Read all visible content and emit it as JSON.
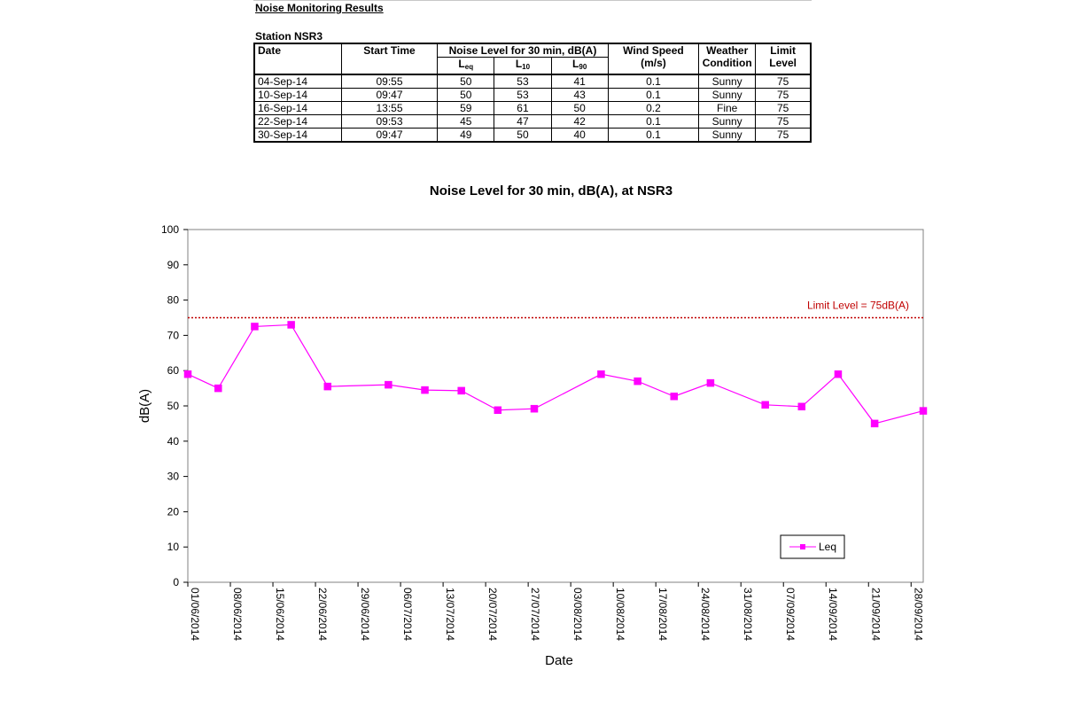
{
  "document": {
    "heading": "Noise Monitoring Results",
    "station": "Station NSR3"
  },
  "table": {
    "headers": {
      "date": "Date",
      "start_time": "Start Time",
      "noise_level": "Noise Level for 30 min, dB(A)",
      "leq": {
        "main": "L",
        "sub": "eq"
      },
      "l10": {
        "main": "L",
        "sub": "10"
      },
      "l90": {
        "main": "L",
        "sub": "90"
      },
      "wind_speed": "Wind Speed",
      "wind_unit": "(m/s)",
      "weather": "Weather",
      "weather2": "Condition",
      "limit": "Limit",
      "limit2": "Level"
    },
    "rows": [
      {
        "date": "04-Sep-14",
        "time": "09:55",
        "leq": "50",
        "l10": "53",
        "l90": "41",
        "wind": "0.1",
        "weather": "Sunny",
        "limit": "75"
      },
      {
        "date": "10-Sep-14",
        "time": "09:47",
        "leq": "50",
        "l10": "53",
        "l90": "43",
        "wind": "0.1",
        "weather": "Sunny",
        "limit": "75"
      },
      {
        "date": "16-Sep-14",
        "time": "13:55",
        "leq": "59",
        "l10": "61",
        "l90": "50",
        "wind": "0.2",
        "weather": "Fine",
        "limit": "75"
      },
      {
        "date": "22-Sep-14",
        "time": "09:53",
        "leq": "45",
        "l10": "47",
        "l90": "42",
        "wind": "0.1",
        "weather": "Sunny",
        "limit": "75"
      },
      {
        "date": "30-Sep-14",
        "time": "09:47",
        "leq": "49",
        "l10": "50",
        "l90": "40",
        "wind": "0.1",
        "weather": "Sunny",
        "limit": "75"
      }
    ]
  },
  "chart_data": {
    "type": "line",
    "title": "Noise Level for 30 min, dB(A), at NSR3",
    "xlabel": "Date",
    "ylabel": "dB(A)",
    "ylim": [
      0,
      100
    ],
    "yticks": [
      0,
      10,
      20,
      30,
      40,
      50,
      60,
      70,
      80,
      90,
      100
    ],
    "xlim": [
      "2014-06-01",
      "2014-09-30"
    ],
    "xticks": [
      "01/06/2014",
      "08/06/2014",
      "15/06/2014",
      "22/06/2014",
      "29/06/2014",
      "06/07/2014",
      "13/07/2014",
      "20/07/2014",
      "27/07/2014",
      "03/08/2014",
      "10/08/2014",
      "17/08/2014",
      "24/08/2014",
      "31/08/2014",
      "07/09/2014",
      "14/09/2014",
      "21/09/2014",
      "28/09/2014"
    ],
    "grid": false,
    "legend": "bottom-right",
    "limit_line": {
      "value": 75,
      "label": "Limit Level  = 75dB(A)",
      "color": "#c00000"
    },
    "series": [
      {
        "name": "Leq",
        "color": "#ff00ff",
        "x": [
          "2014-06-01",
          "2014-06-06",
          "2014-06-12",
          "2014-06-18",
          "2014-06-24",
          "2014-07-04",
          "2014-07-10",
          "2014-07-16",
          "2014-07-22",
          "2014-07-28",
          "2014-08-08",
          "2014-08-14",
          "2014-08-20",
          "2014-08-26",
          "2014-09-04",
          "2014-09-10",
          "2014-09-16",
          "2014-09-22",
          "2014-09-30"
        ],
        "values": [
          59,
          55,
          72.5,
          73,
          55.5,
          56,
          54.5,
          54.3,
          48.8,
          49.2,
          59,
          57,
          52.7,
          56.5,
          50.3,
          49.8,
          59,
          45,
          48.6
        ],
        "marker": "square"
      }
    ]
  }
}
